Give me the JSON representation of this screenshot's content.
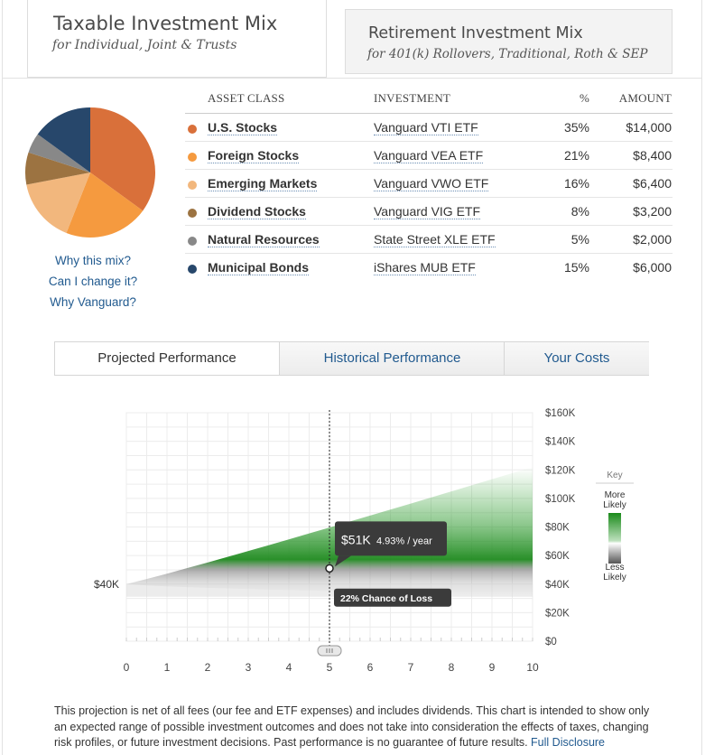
{
  "top_tabs": {
    "taxable": {
      "title": "Taxable Investment Mix",
      "subtitle": "for Individual, Joint & Trusts"
    },
    "retirement": {
      "title": "Retirement Investment Mix",
      "subtitle": "for 401(k) Rollovers, Traditional, Roth & SEP"
    }
  },
  "side_links": [
    "Why this mix?",
    "Can I change it?",
    "Why Vanguard?"
  ],
  "table": {
    "headers": {
      "asset_class": "ASSET CLASS",
      "investment": "INVESTMENT",
      "pct": "%",
      "amount": "AMOUNT"
    },
    "rows": [
      {
        "asset_class": "U.S. Stocks",
        "investment": "Vanguard VTI ETF",
        "pct": "35%",
        "amount": "$14,000",
        "color": "#d9703a",
        "value": 35
      },
      {
        "asset_class": "Foreign Stocks",
        "investment": "Vanguard VEA ETF",
        "pct": "21%",
        "amount": "$8,400",
        "color": "#f59a3f",
        "value": 21
      },
      {
        "asset_class": "Emerging Markets",
        "investment": "Vanguard VWO ETF",
        "pct": "16%",
        "amount": "$6,400",
        "color": "#f2b77d",
        "value": 16
      },
      {
        "asset_class": "Dividend Stocks",
        "investment": "Vanguard VIG ETF",
        "pct": "8%",
        "amount": "$3,200",
        "color": "#9c7341",
        "value": 8
      },
      {
        "asset_class": "Natural Resources",
        "investment": "State Street XLE ETF",
        "pct": "5%",
        "amount": "$2,000",
        "color": "#888888",
        "value": 5
      },
      {
        "asset_class": "Municipal Bonds",
        "investment": "iShares MUB ETF",
        "pct": "15%",
        "amount": "$6,000",
        "color": "#27476b",
        "value": 15
      }
    ]
  },
  "perf_tabs": [
    {
      "label": "Projected Performance",
      "active": true
    },
    {
      "label": "Historical Performance",
      "active": false
    },
    {
      "label": "Your Costs",
      "active": false
    }
  ],
  "chart_data": {
    "type": "area",
    "x_ticks": [
      "0",
      "1",
      "2",
      "3",
      "4",
      "5",
      "6",
      "7",
      "8",
      "9",
      "10"
    ],
    "y_ticks": [
      "$0",
      "$20K",
      "$40K",
      "$60K",
      "$80K",
      "$100K",
      "$120K",
      "$140K",
      "$160K"
    ],
    "xlim": [
      0,
      10
    ],
    "ylim": [
      0,
      160
    ],
    "start_label": "$40K",
    "start_value": 40,
    "selected_year": 5,
    "selected_value": 51,
    "tooltip_value": "$51K",
    "tooltip_rate": "4.93% / year",
    "loss_label": "22% Chance of Loss",
    "band_upper_at_10": 122,
    "band_lower_at_10": 32,
    "median_at_10": 65,
    "key": {
      "title": "Key",
      "top": "More\nLikely",
      "bottom": "Less\nLikely"
    },
    "grid": true
  },
  "disclaimer": {
    "text": "This projection is net of all fees (our fee and ETF expenses) and includes dividends. This chart is intended to show only an expected range of possible investment outcomes and does not take into consideration the effects of taxes, changing risk profiles, or future investment decisions. Past performance is no guarantee of future results.",
    "link": "Full Disclosure"
  }
}
